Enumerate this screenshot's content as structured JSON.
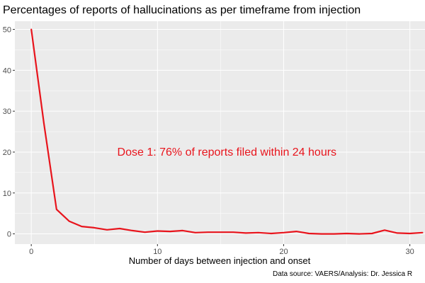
{
  "chart_data": {
    "type": "line",
    "title": "Percentages of reports of hallucinations as per timeframe from injection",
    "xlabel": "Number of days between injection and onset",
    "ylabel": "",
    "xlim": [
      -1.3,
      31.2
    ],
    "ylim": [
      -2.5,
      52
    ],
    "x_ticks": [
      0,
      10,
      20,
      30
    ],
    "y_ticks": [
      0,
      10,
      20,
      30,
      40,
      50
    ],
    "x_tick_labels": [
      "0",
      "10",
      "20",
      "30"
    ],
    "y_tick_labels": [
      "0",
      "10",
      "20",
      "30",
      "40",
      "50"
    ],
    "grid": true,
    "background_color": "#ebebeb",
    "grid_color": "#ffffff",
    "series": [
      {
        "color": "#e8141c",
        "x": [
          0,
          1,
          2,
          3,
          4,
          5,
          6,
          7,
          8,
          9,
          10,
          11,
          12,
          13,
          14,
          15,
          16,
          17,
          18,
          19,
          20,
          21,
          22,
          23,
          24,
          25,
          26,
          27,
          28,
          29,
          30,
          31
        ],
        "y": [
          50,
          27,
          6,
          3.1,
          1.8,
          1.5,
          1.0,
          1.3,
          0.8,
          0.4,
          0.7,
          0.6,
          0.8,
          0.3,
          0.4,
          0.4,
          0.4,
          0.2,
          0.3,
          0.1,
          0.3,
          0.6,
          0.1,
          0.0,
          0.0,
          0.1,
          0.0,
          0.1,
          0.9,
          0.2,
          0.1,
          0.3
        ]
      }
    ],
    "annotations": [
      {
        "text": "Dose 1: 76% of reports filed within 24 hours",
        "x": 15.5,
        "y": 20,
        "color": "#e8141c"
      }
    ],
    "caption": "Data source: VAERS/Analysis: Dr. Jessica R"
  }
}
